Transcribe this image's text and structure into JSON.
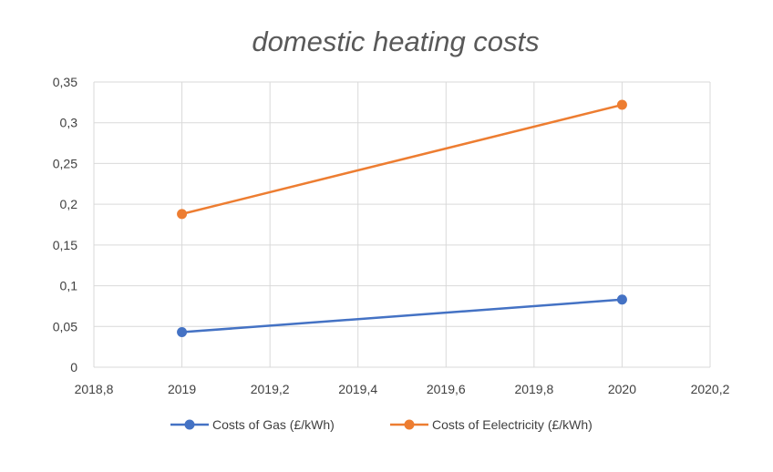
{
  "chart_data": {
    "type": "scatter",
    "title": "domestic heating costs",
    "xlabel": "",
    "ylabel": "",
    "xlim": [
      2018.8,
      2020.2
    ],
    "ylim": [
      0,
      0.35
    ],
    "x_ticks": [
      2018.8,
      2019,
      2019.2,
      2019.4,
      2019.6,
      2019.8,
      2020,
      2020.2
    ],
    "x_tick_labels": [
      "2018,8",
      "2019",
      "2019,2",
      "2019,4",
      "2019,6",
      "2019,8",
      "2020",
      "2020,2"
    ],
    "y_ticks": [
      0,
      0.05,
      0.1,
      0.15,
      0.2,
      0.25,
      0.3,
      0.35
    ],
    "y_tick_labels": [
      "0",
      "0,05",
      "0,1",
      "0,15",
      "0,2",
      "0,25",
      "0,3",
      "0,35"
    ],
    "grid": true,
    "legend_position": "bottom",
    "series": [
      {
        "name": "Costs of Gas (£/kWh)",
        "color": "#4472c4",
        "x": [
          2019,
          2020
        ],
        "y": [
          0.043,
          0.083
        ]
      },
      {
        "name": "Costs of Eelectricity (£/kWh)",
        "color": "#ed7d31",
        "x": [
          2019,
          2020
        ],
        "y": [
          0.188,
          0.322
        ]
      }
    ]
  }
}
